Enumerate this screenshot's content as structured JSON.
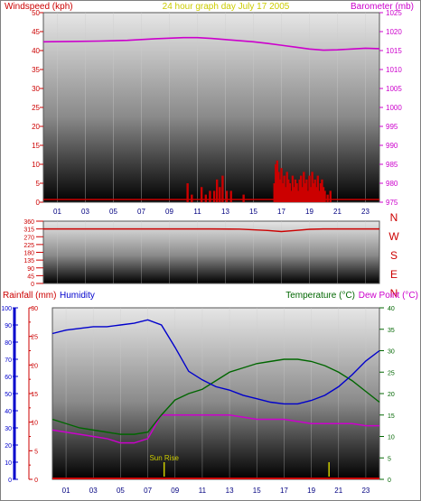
{
  "header": {
    "windspeed_label": "Windspeed (kph)",
    "title": "24 hour graph day   July 17 2005",
    "barometer_label": "Barometer (mb)"
  },
  "colors": {
    "windspeed": "#cc0000",
    "title": "#cccc00",
    "barometer": "#cc00cc",
    "rainfall": "#cc0000",
    "humidity": "#0000cc",
    "temperature": "#006600",
    "dew_point": "#cc00cc",
    "wind_direction": "#cc0000",
    "sunrise": "#cccc00"
  },
  "compass": [
    "N",
    "W",
    "S",
    "E",
    "N"
  ],
  "chart_data": [
    {
      "type": "line",
      "panel": "wind-barometer",
      "x_ticks": [
        "01",
        "03",
        "05",
        "07",
        "09",
        "11",
        "13",
        "15",
        "17",
        "19",
        "21",
        "23"
      ],
      "xlim": [
        0,
        24
      ],
      "y_left": {
        "label": "Windspeed (kph)",
        "ylim": [
          0,
          50
        ],
        "ticks": [
          "0",
          "5",
          "10",
          "15",
          "20",
          "25",
          "30",
          "35",
          "40",
          "45",
          "50"
        ]
      },
      "y_right": {
        "label": "Barometer (mb)",
        "ylim": [
          975,
          1025
        ],
        "ticks": [
          "975",
          "980",
          "985",
          "990",
          "995",
          "1000",
          "1005",
          "1010",
          "1015",
          "1020",
          "1025"
        ]
      },
      "series": [
        {
          "name": "Barometer (mb)",
          "axis": "right",
          "style": "line",
          "x": [
            0,
            2,
            4,
            6,
            8,
            10,
            11,
            12,
            13,
            14,
            15,
            16,
            17,
            18,
            19,
            20,
            21,
            22,
            23,
            24
          ],
          "y": [
            1017.3,
            1017.4,
            1017.5,
            1017.7,
            1018.1,
            1018.4,
            1018.4,
            1018.2,
            1017.9,
            1017.6,
            1017.3,
            1016.9,
            1016.4,
            1015.9,
            1015.4,
            1015.1,
            1015.2,
            1015.4,
            1015.6,
            1015.5
          ]
        },
        {
          "name": "Windspeed (kph)",
          "axis": "left",
          "style": "bars",
          "x": [
            10.3,
            10.6,
            11.3,
            11.6,
            11.9,
            12.2,
            12.4,
            12.6,
            12.8,
            13.1,
            13.4,
            14.3,
            16.5,
            16.6,
            16.7,
            16.8,
            16.9,
            17.0,
            17.1,
            17.2,
            17.3,
            17.4,
            17.5,
            17.6,
            17.7,
            17.8,
            17.9,
            18.0,
            18.1,
            18.2,
            18.3,
            18.4,
            18.5,
            18.6,
            18.7,
            18.8,
            18.9,
            19.0,
            19.1,
            19.2,
            19.3,
            19.4,
            19.5,
            19.6,
            19.7,
            19.8,
            19.9,
            20.0,
            20.1,
            20.3,
            20.5
          ],
          "y": [
            5,
            2,
            4,
            2,
            3,
            3,
            6,
            4,
            7,
            3,
            3,
            2,
            5,
            10,
            11,
            8,
            6,
            9,
            5,
            7,
            4,
            8,
            6,
            5,
            3,
            7,
            4,
            6,
            5,
            3,
            6,
            7,
            4,
            8,
            5,
            6,
            3,
            7,
            4,
            8,
            5,
            6,
            4,
            7,
            3,
            5,
            6,
            4,
            3,
            2,
            3
          ]
        }
      ]
    },
    {
      "type": "line",
      "panel": "wind-direction",
      "xlim": [
        0,
        24
      ],
      "y_left": {
        "ylim": [
          0,
          360
        ],
        "ticks": [
          "0",
          "45",
          "90",
          "135",
          "180",
          "225",
          "270",
          "315",
          "360"
        ]
      },
      "y_right_labels": [
        "N",
        "W",
        "S",
        "E",
        "N"
      ],
      "series": [
        {
          "name": "Wind direction",
          "axis": "left",
          "style": "line",
          "x": [
            0,
            4,
            8,
            12,
            14,
            16,
            17,
            18,
            19,
            20,
            22,
            24
          ],
          "y": [
            315,
            315,
            315,
            315,
            314,
            306,
            300,
            306,
            313,
            315,
            315,
            315
          ]
        }
      ]
    },
    {
      "type": "line",
      "panel": "rain-humidity-temperature",
      "x_ticks": [
        "01",
        "03",
        "05",
        "07",
        "09",
        "11",
        "13",
        "15",
        "17",
        "19",
        "21",
        "23"
      ],
      "xlim": [
        0,
        24
      ],
      "y_humidity": {
        "label": "Humidity",
        "ylim": [
          0,
          100
        ],
        "ticks": [
          "0",
          "10",
          "20",
          "30",
          "40",
          "50",
          "60",
          "70",
          "80",
          "90",
          "100"
        ]
      },
      "y_rainfall": {
        "label": "Rainfall (mm)",
        "ylim": [
          0,
          30
        ],
        "ticks": [
          "0",
          "5",
          "10",
          "15",
          "20",
          "25",
          "30"
        ]
      },
      "y_right": {
        "labels": [
          "Temperature (°C)",
          "Dew Point (°C)"
        ],
        "ylim": [
          0,
          40
        ],
        "ticks": [
          "0",
          "5",
          "10",
          "15",
          "20",
          "25",
          "30",
          "35",
          "40"
        ]
      },
      "annotations": [
        {
          "text": "Sun Rise",
          "x": 8.2
        },
        {
          "text": "",
          "x": 20.3
        }
      ],
      "series": [
        {
          "name": "Humidity",
          "axis": "humidity",
          "style": "line",
          "x": [
            0,
            1,
            2,
            3,
            4,
            5,
            6,
            7,
            8,
            9,
            10,
            11,
            12,
            13,
            14,
            15,
            16,
            17,
            18,
            19,
            20,
            21,
            22,
            23,
            24
          ],
          "y": [
            85,
            87,
            88,
            89,
            89,
            90,
            91,
            93,
            90,
            77,
            63,
            58,
            54,
            52,
            49,
            47,
            45,
            44,
            44,
            46,
            49,
            54,
            61,
            69,
            75
          ]
        },
        {
          "name": "Temperature (°C)",
          "axis": "right",
          "style": "line",
          "x": [
            0,
            1,
            2,
            3,
            4,
            5,
            6,
            7,
            8,
            9,
            10,
            11,
            12,
            13,
            14,
            15,
            16,
            17,
            18,
            19,
            20,
            21,
            22,
            23,
            24
          ],
          "y": [
            14,
            13,
            12,
            11.5,
            11,
            10.5,
            10.5,
            11,
            15,
            18.5,
            20,
            21,
            23,
            25,
            26,
            27,
            27.5,
            28,
            28,
            27.5,
            26.5,
            25,
            23,
            20.5,
            18
          ]
        },
        {
          "name": "Dew Point (°C)",
          "axis": "right",
          "style": "line",
          "x": [
            0,
            1,
            2,
            3,
            4,
            5,
            6,
            7,
            8,
            9,
            10,
            11,
            12,
            13,
            14,
            15,
            16,
            17,
            18,
            19,
            20,
            21,
            22,
            23,
            24
          ],
          "y": [
            11.5,
            11,
            10.5,
            10,
            9.5,
            8.5,
            8.5,
            9.5,
            15,
            15,
            15,
            15,
            15,
            15,
            14.5,
            14,
            14,
            14,
            13.5,
            13,
            13,
            13,
            13,
            12.5,
            12.5
          ]
        },
        {
          "name": "Rainfall (mm)",
          "axis": "rainfall",
          "style": "line",
          "x": [
            0,
            24
          ],
          "y": [
            0,
            0
          ]
        }
      ]
    }
  ]
}
